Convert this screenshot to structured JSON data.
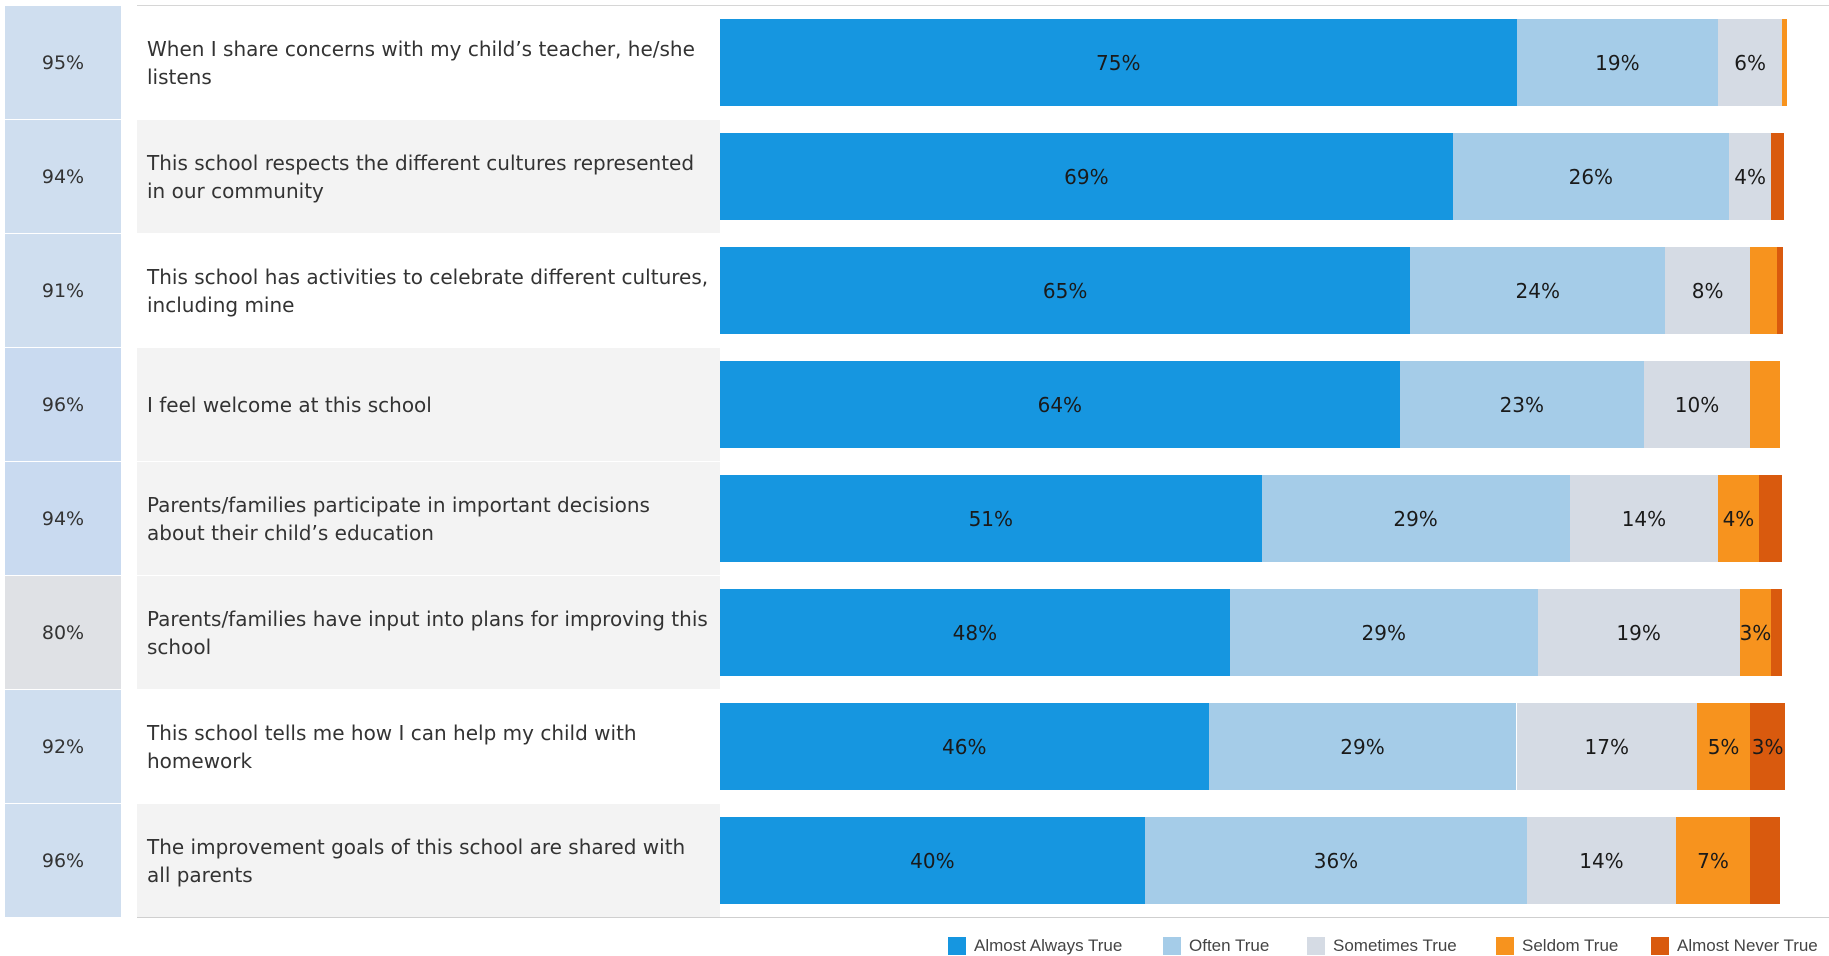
{
  "chart_data": {
    "type": "bar",
    "orientation": "horizontal",
    "stacked": true,
    "percent_labels_col": [
      "95%",
      "94%",
      "91%",
      "96%",
      "94%",
      "80%",
      "92%",
      "96%"
    ],
    "categories": [
      "When I share concerns with my child’s teacher, he/she listens",
      "This school respects the different cultures represented in our community",
      "This school has activities to celebrate different cultures, including mine",
      "I feel welcome at this school",
      "Parents/families participate in important decisions about their child’s education",
      "Parents/families have input into plans for improving this school",
      "This school tells me how I can help my child with homework",
      "The improvement goals of this school are shared with all parents"
    ],
    "series": [
      {
        "name": "Almost Always True",
        "color": "#1696e0",
        "values": [
          75,
          69,
          65,
          64,
          51,
          48,
          46,
          40
        ]
      },
      {
        "name": "Often True",
        "color": "#a5cce8",
        "values": [
          19,
          26,
          24,
          23,
          29,
          29,
          29,
          36
        ]
      },
      {
        "name": "Sometimes True",
        "color": "#d5dbe4",
        "values": [
          6,
          4,
          8,
          10,
          14,
          19,
          17,
          14
        ]
      },
      {
        "name": "Seldom True",
        "color": "#f7931e",
        "values": [
          0.5,
          0,
          2.5,
          2.8,
          3.8,
          3,
          5,
          7
        ]
      },
      {
        "name": "Almost Never True",
        "color": "#d95a0e",
        "values": [
          0,
          1.2,
          0.6,
          0,
          2.2,
          1,
          3.3,
          2.8
        ]
      }
    ],
    "data_labels": [
      [
        "75%",
        "19%",
        "6%",
        "",
        ""
      ],
      [
        "69%",
        "26%",
        "4%",
        "",
        ""
      ],
      [
        "65%",
        "24%",
        "8%",
        "",
        ""
      ],
      [
        "64%",
        "23%",
        "10%",
        "",
        ""
      ],
      [
        "51%",
        "29%",
        "14%",
        "4%",
        ""
      ],
      [
        "48%",
        "29%",
        "19%",
        "3%",
        ""
      ],
      [
        "46%",
        "29%",
        "17%",
        "5%",
        "3%"
      ],
      [
        "40%",
        "36%",
        "14%",
        "7%",
        ""
      ]
    ],
    "xlim": [
      0,
      100
    ],
    "grid": false,
    "legend_position": "bottom-right"
  },
  "styles": {
    "pct_col_colors": [
      "#cfdeef",
      "#cfdeef",
      "#cfdeef",
      "#c9daf0",
      "#c9daf0",
      "#dfe1e5",
      "#cfdeef",
      "#cfdeef"
    ],
    "row_band_colors": [
      "#ffffff",
      "#f3f3f3",
      "#ffffff",
      "#f3f3f3",
      "#f3f3f3",
      "#f3f3f3",
      "#ffffff",
      "#f3f3f3"
    ]
  }
}
